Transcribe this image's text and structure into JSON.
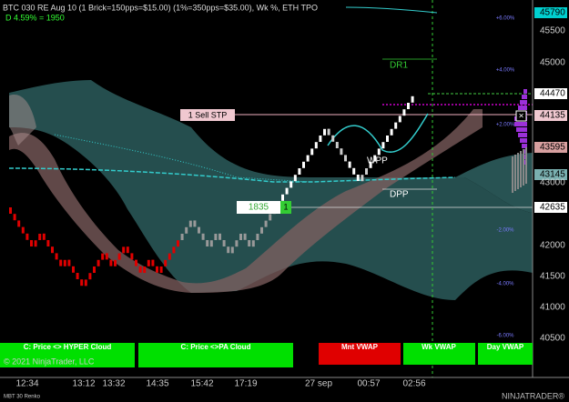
{
  "header": {
    "title": "BTC 030 RE Aug 10 (1 Brick=150pps=$15.00) (1%=350pps=$35.00), Wk %, ETH TPO",
    "stat": "D 4.59% = 1950"
  },
  "labels": {
    "dr1": "DR1",
    "sell": "1 Sell STP",
    "wpp": "WPP",
    "dpp": "DPP",
    "price": "1835",
    "qty": "1"
  },
  "price_axis": [
    "45790",
    "45500",
    "45000",
    "44470",
    "44135",
    "43595",
    "43145",
    "43000",
    "42635",
    "42000",
    "41500",
    "41000",
    "40500"
  ],
  "percent_axis": [
    "+6.00%",
    "+4.00%",
    "+2.00%",
    "-2.00%",
    "-4.00%",
    "-6.00%"
  ],
  "time_axis": [
    "12:34",
    "13:12",
    "13:32",
    "14:35",
    "15:42",
    "17:19",
    "27 sep",
    "00:57",
    "02:56"
  ],
  "buttons": [
    "C: Price <> HYPER Cloud",
    "C: Price <>PA Cloud",
    "Mnt VWAP",
    "Wk VWAP",
    "Day VWAP"
  ],
  "footer": {
    "copyright": "© 2021 NinjaTrader, LLC",
    "instrument": "MBT 30 Renko",
    "logo": "NINJATRADER®"
  }
}
